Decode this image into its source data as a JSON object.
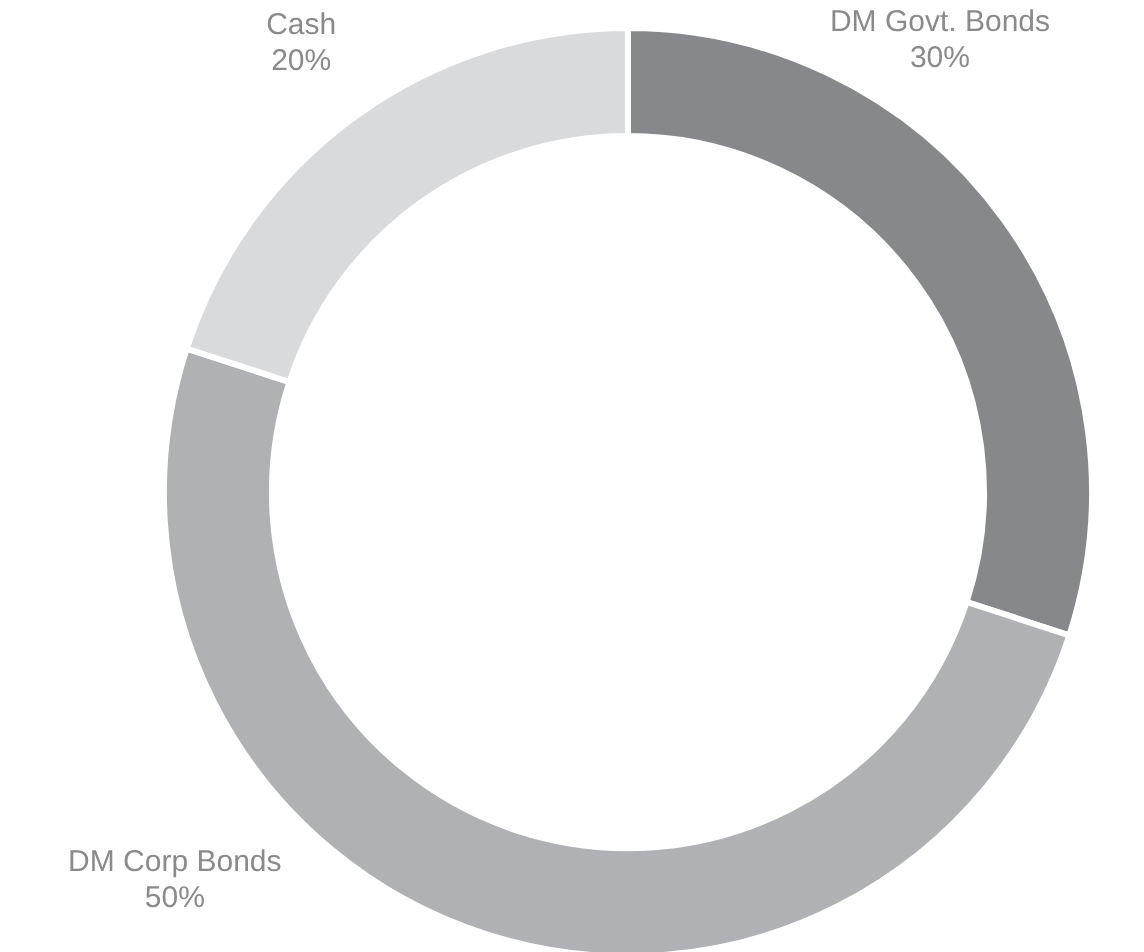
{
  "chart_data": {
    "type": "donut",
    "categories": [
      "DM Govt. Bonds",
      "DM Corp Bonds",
      "Cash"
    ],
    "values": [
      30,
      50,
      20
    ],
    "colors": [
      "#87888c",
      "#b0b1b4",
      "#d9dadc"
    ],
    "value_labels": [
      "30%",
      "50%",
      "20%"
    ],
    "legend": false
  }
}
